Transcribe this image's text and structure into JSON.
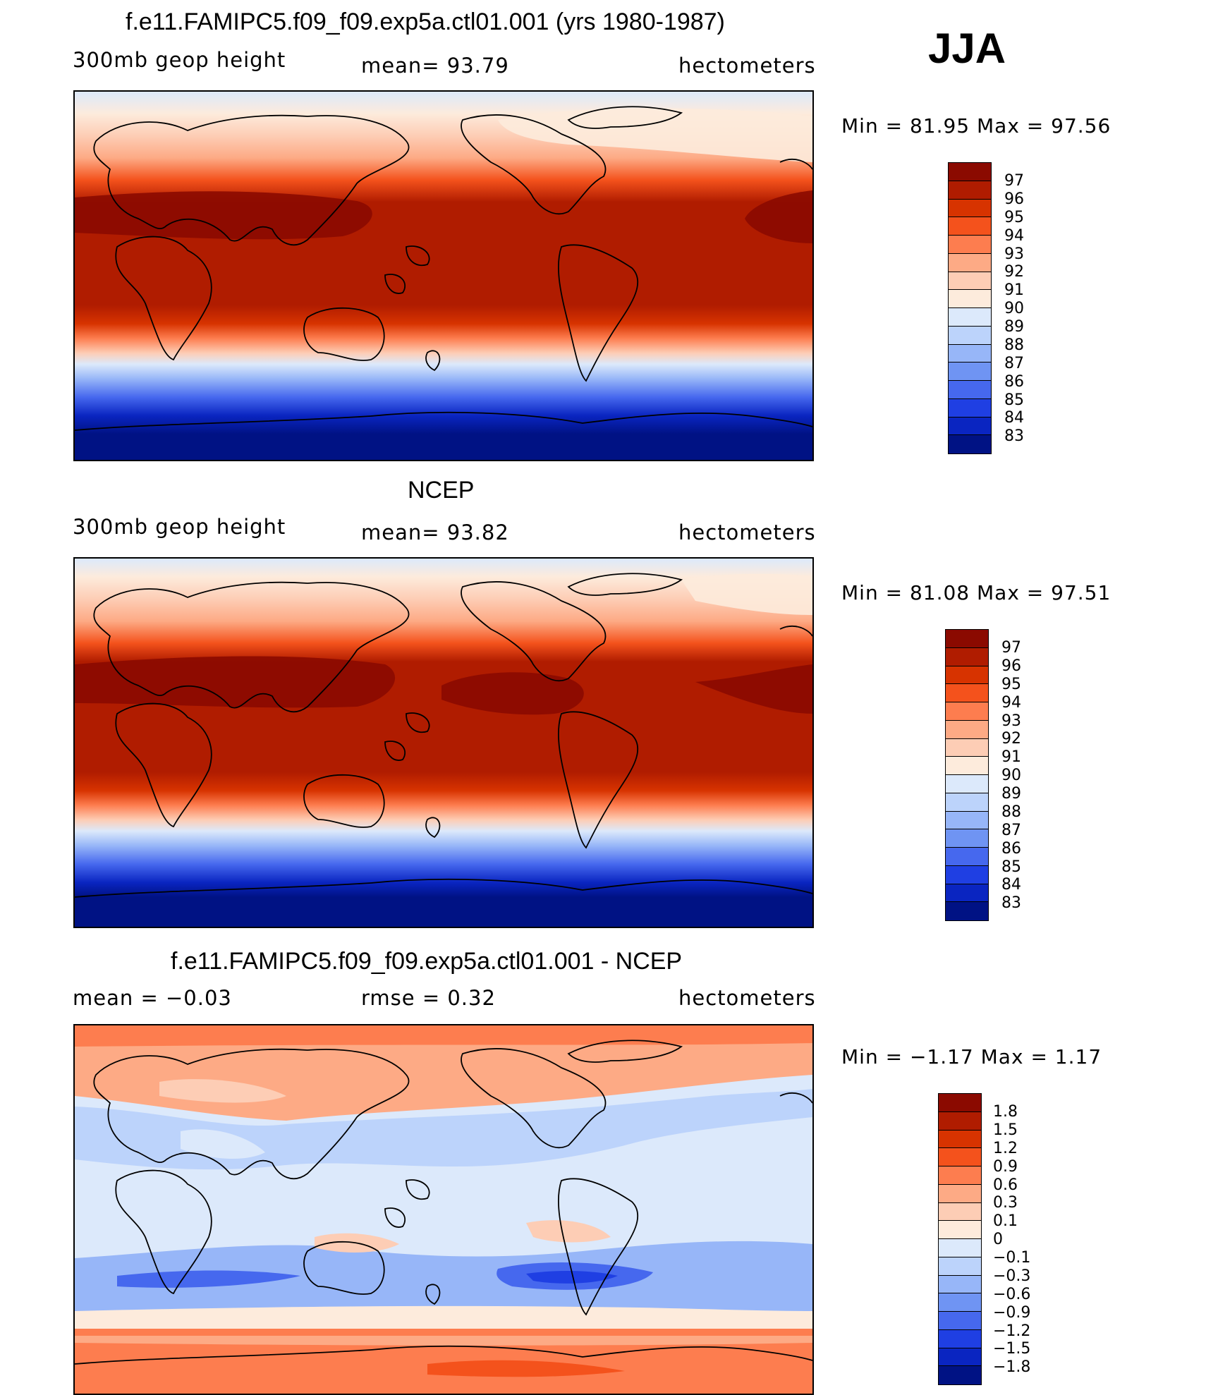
{
  "season": "JJA",
  "panels": [
    {
      "title": "f.e11.FAMIPC5.f09_f09.exp5a.ctl01.001 (yrs 1980-1987)",
      "left_label": "300mb  geop  height",
      "mid_label": "mean=   93.79",
      "right_label": "hectometers",
      "minmax": "Min  =    81.95  Max  =    97.56",
      "colorbar_labels": [
        "97",
        "96",
        "95",
        "94",
        "93",
        "92",
        "91",
        "90",
        "89",
        "88",
        "87",
        "86",
        "85",
        "84",
        "83"
      ]
    },
    {
      "title": "NCEP",
      "left_label": "300mb  geop  height",
      "mid_label": "mean=   93.82",
      "right_label": "hectometers",
      "minmax": "Min  =    81.08  Max  =    97.51",
      "colorbar_labels": [
        "97",
        "96",
        "95",
        "94",
        "93",
        "92",
        "91",
        "90",
        "89",
        "88",
        "87",
        "86",
        "85",
        "84",
        "83"
      ]
    },
    {
      "title": "f.e11.FAMIPC5.f09_f09.exp5a.ctl01.001 - NCEP",
      "left_label": "mean  =    −0.03",
      "mid_label": "rmse  =     0.32",
      "right_label": "hectometers",
      "minmax": "Min  =    −1.17  Max  =      1.17",
      "colorbar_labels": [
        "1.8",
        "1.5",
        "1.2",
        "0.9",
        "0.6",
        "0.3",
        "0.1",
        "0",
        "−0.1",
        "−0.3",
        "−0.6",
        "−0.9",
        "−1.2",
        "−1.5",
        "−1.8"
      ]
    }
  ],
  "colors": {
    "scale": [
      "#8b0a00",
      "#b01c00",
      "#d73300",
      "#f4521c",
      "#fd7d4f",
      "#fdaa85",
      "#fdcdb5",
      "#fdebdc",
      "#dce9fb",
      "#bcd3fb",
      "#97b6f8",
      "#6f94f3",
      "#4668ee",
      "#1f3fe3",
      "#0a25c1",
      "#001284"
    ]
  }
}
